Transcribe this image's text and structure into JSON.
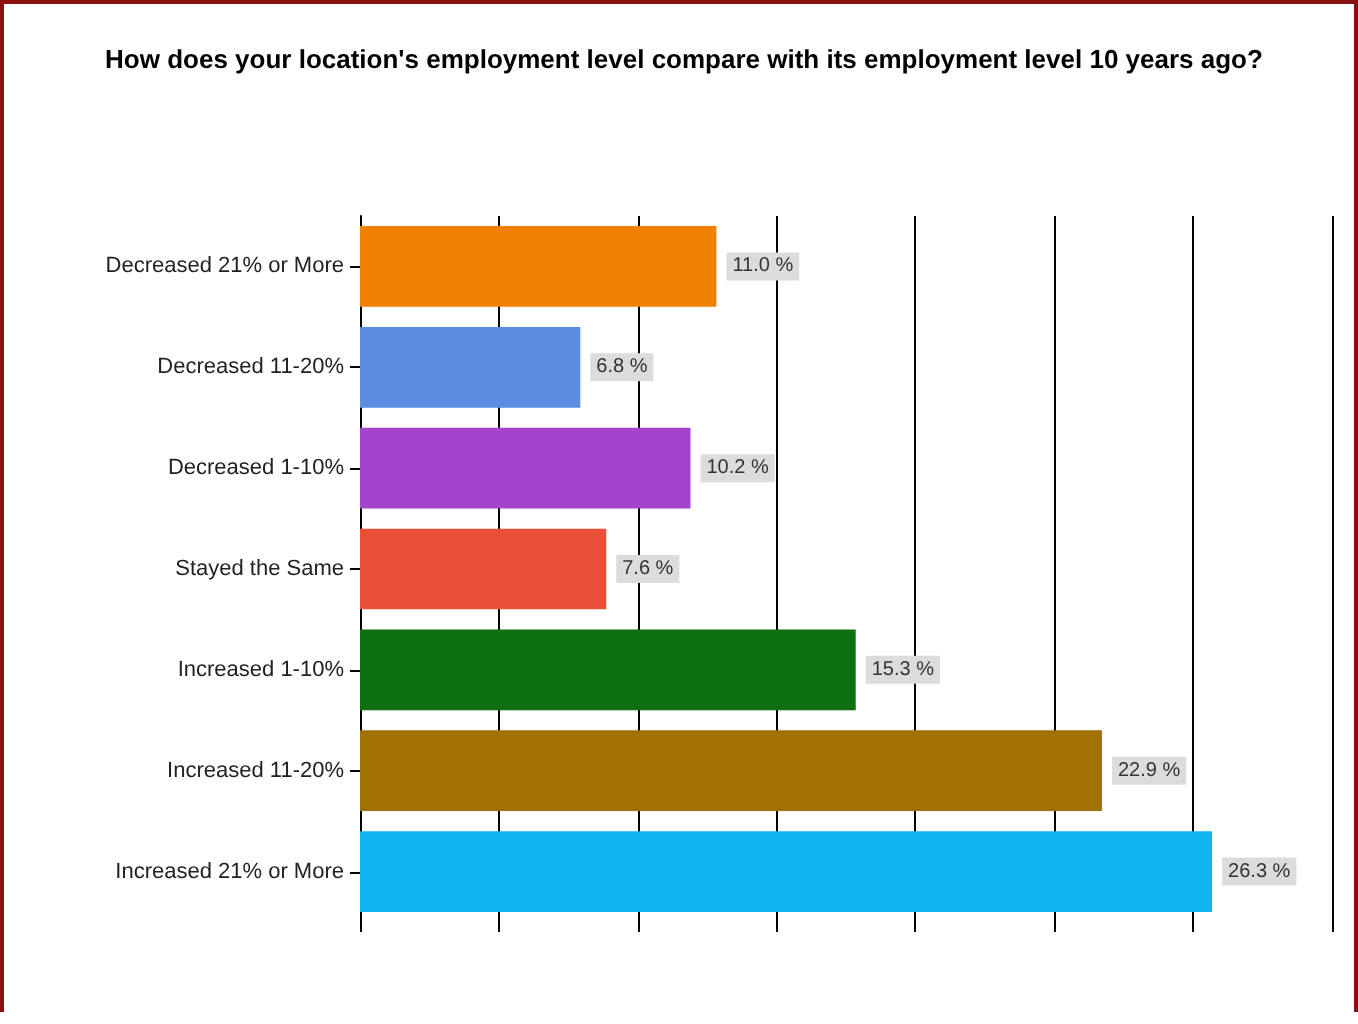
{
  "chart_data": {
    "type": "bar",
    "orientation": "horizontal",
    "title": "How does your location's employment level compare with its employment level 10 years ago?",
    "categories": [
      "Decreased 21% or More",
      "Decreased 11-20%",
      "Decreased 1-10%",
      "Stayed the Same",
      "Increased 1-10%",
      "Increased 11-20%",
      "Increased 21% or More"
    ],
    "values": [
      11.0,
      6.8,
      10.2,
      7.6,
      15.3,
      22.9,
      26.3
    ],
    "value_labels": [
      "11.0 %",
      "6.8 %",
      "10.2 %",
      "7.6 %",
      "15.3 %",
      "22.9 %",
      "26.3 %"
    ],
    "colors": [
      "#f08000",
      "#5b8ee0",
      "#a444cc",
      "#e85038",
      "#0e7010",
      "#a07000",
      "#10b4f0"
    ],
    "xlim": [
      0,
      30
    ],
    "xticks": [
      {
        "value": 0,
        "label": null
      },
      {
        "value": 4.29,
        "label": null
      },
      {
        "value": 8.57,
        "label": null
      },
      {
        "value": 12.86,
        "label": null
      },
      {
        "value": 17.14,
        "label": null
      },
      {
        "value": 21.43,
        "label": null
      },
      {
        "value": 25.71,
        "label": null
      },
      {
        "value": 30,
        "label": null
      }
    ],
    "grid": "x"
  }
}
